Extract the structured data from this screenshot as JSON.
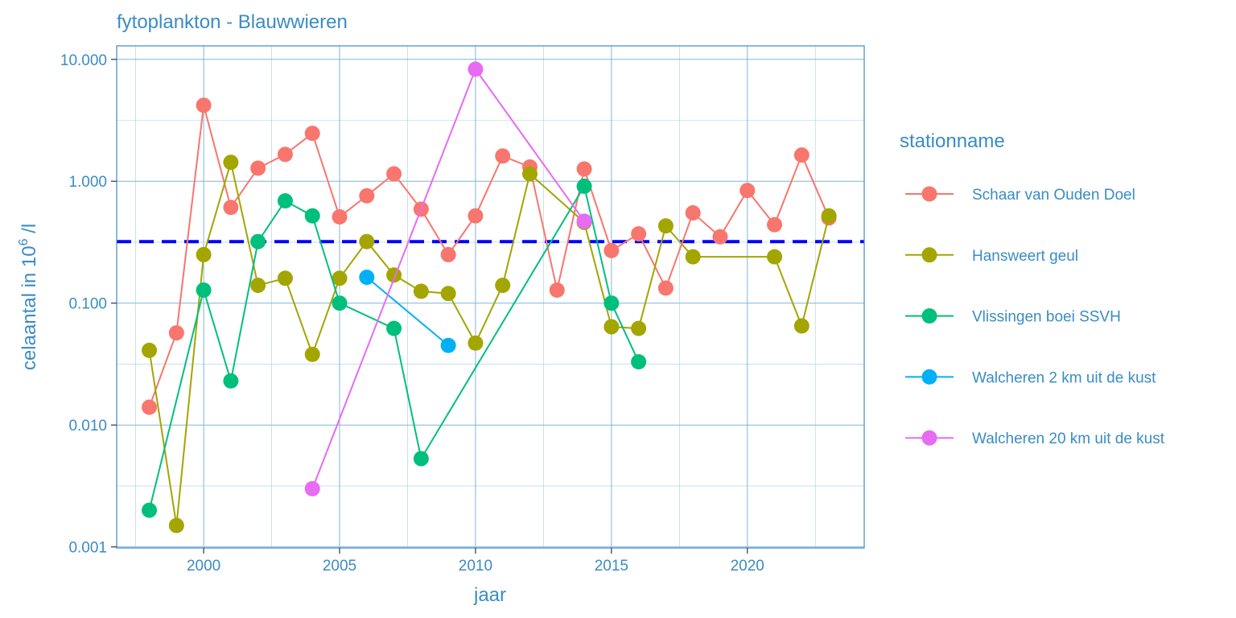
{
  "chart_data": {
    "type": "line",
    "title": "fytoplankton - Blauwwieren",
    "xlabel": "jaar",
    "ylabel": "celaantal in  10",
    "ylabel_sup": "6",
    "ylabel_suffix": " /l",
    "yscale": "log10",
    "xlim": [
      1996.8,
      2024.3
    ],
    "ylim": [
      0.00098,
      12.9
    ],
    "x_ticks": [
      2000,
      2005,
      2010,
      2015,
      2020
    ],
    "y_ticks": [
      0.001,
      0.01,
      0.1,
      1,
      10
    ],
    "y_tick_labels": [
      "0.001",
      "0.010",
      "0.100",
      "1.000",
      "10.000"
    ],
    "grid": true,
    "legend_position": "right",
    "legend_title": "stationname",
    "reference_line": {
      "y": 0.32,
      "style": "dashed",
      "color": "#0000FF"
    },
    "series": [
      {
        "name": "Schaar van Ouden Doel",
        "color": "#F8766D",
        "x": [
          1998,
          1999,
          2000,
          2001,
          2002,
          2003,
          2004,
          2005,
          2006,
          2007,
          2008,
          2009,
          2010,
          2011,
          2012,
          2013,
          2014,
          2015,
          2016,
          2017,
          2018,
          2019,
          2020,
          2021,
          2022,
          2023
        ],
        "y": [
          0.014,
          0.057,
          4.2,
          0.61,
          1.28,
          1.66,
          2.47,
          0.51,
          0.76,
          1.15,
          0.59,
          0.25,
          0.52,
          1.61,
          1.31,
          0.128,
          1.26,
          0.27,
          0.37,
          0.133,
          0.55,
          0.35,
          0.84,
          0.44,
          1.64,
          0.5
        ]
      },
      {
        "name": "Hansweert geul",
        "color": "#A3A500",
        "x": [
          1998,
          1999,
          2000,
          2001,
          2002,
          2003,
          2004,
          2005,
          2006,
          2007,
          2008,
          2009,
          2010,
          2011,
          2012,
          2014,
          2015,
          2016,
          2017,
          2018,
          2021,
          2022,
          2023
        ],
        "y": [
          0.041,
          0.0015,
          0.25,
          1.43,
          0.14,
          0.16,
          0.038,
          0.16,
          0.32,
          0.17,
          0.125,
          0.12,
          0.047,
          0.14,
          1.15,
          0.46,
          0.064,
          0.062,
          0.43,
          0.24,
          0.24,
          0.065,
          0.52
        ]
      },
      {
        "name": "Vlissingen boei SSVH",
        "color": "#00BF7D",
        "x": [
          1998,
          2000,
          2001,
          2002,
          2003,
          2004,
          2005,
          2007,
          2008,
          2014,
          2015,
          2016
        ],
        "y": [
          0.002,
          0.128,
          0.023,
          0.32,
          0.69,
          0.52,
          0.1,
          0.062,
          0.0053,
          0.91,
          0.1,
          0.033
        ]
      },
      {
        "name": "Walcheren 2 km uit de kust",
        "color": "#00B0F6",
        "x": [
          2006,
          2009
        ],
        "y": [
          0.163,
          0.045
        ]
      },
      {
        "name": "Walcheren 20 km uit de kust",
        "color": "#E76BF3",
        "x": [
          2004,
          2010,
          2014
        ],
        "y": [
          0.003,
          8.3,
          0.47
        ]
      }
    ]
  }
}
